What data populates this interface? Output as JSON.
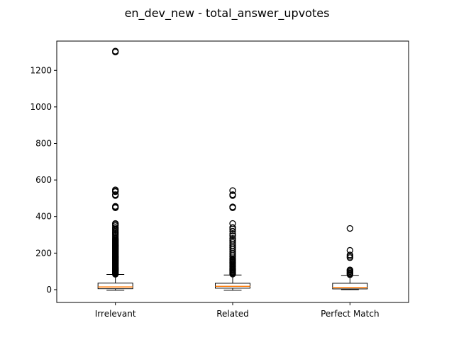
{
  "chart_data": {
    "type": "box",
    "title": "en_dev_new - total_answer_upvotes",
    "xlabel": "",
    "ylabel": "",
    "ylim": [
      -70,
      1360
    ],
    "yticks": [
      0,
      200,
      400,
      600,
      800,
      1000,
      1200
    ],
    "categories": [
      "Irrelevant",
      "Related",
      "Perfect Match"
    ],
    "boxes": [
      {
        "category": "Irrelevant",
        "whisker_low": -3,
        "q1": 5,
        "median": 15,
        "q3": 36,
        "whisker_high": 83,
        "outliers": [
          84,
          88,
          92,
          96,
          100,
          104,
          108,
          112,
          116,
          120,
          124,
          128,
          132,
          136,
          140,
          144,
          148,
          152,
          156,
          160,
          164,
          168,
          172,
          176,
          180,
          184,
          188,
          192,
          196,
          200,
          204,
          208,
          212,
          216,
          220,
          224,
          228,
          232,
          236,
          240,
          244,
          248,
          252,
          256,
          260,
          264,
          268,
          272,
          276,
          282,
          290,
          298,
          306,
          312,
          318,
          325,
          333,
          340,
          350,
          357,
          362,
          448,
          452,
          456,
          515,
          520,
          536,
          540,
          546,
          1300,
          1305
        ]
      },
      {
        "category": "Related",
        "whisker_low": -3,
        "q1": 8,
        "median": 18,
        "q3": 35,
        "whisker_high": 80,
        "outliers": [
          85,
          90,
          95,
          100,
          105,
          110,
          115,
          120,
          125,
          130,
          135,
          140,
          145,
          150,
          155,
          160,
          165,
          170,
          180,
          190,
          200,
          210,
          220,
          230,
          240,
          250,
          260,
          270,
          280,
          295,
          305,
          320,
          332,
          340,
          362,
          448,
          453,
          515,
          520,
          542
        ]
      },
      {
        "category": "Perfect Match",
        "whisker_low": 0,
        "q1": 4,
        "median": 12,
        "q3": 35,
        "whisker_high": 78,
        "outliers": [
          82,
          87,
          92,
          98,
          104,
          108,
          175,
          182,
          190,
          215,
          335
        ]
      }
    ],
    "colors": {
      "box": "#000000",
      "median": "#ff7f0e",
      "outlier": "#000000"
    },
    "grid": false,
    "legend": "none"
  }
}
